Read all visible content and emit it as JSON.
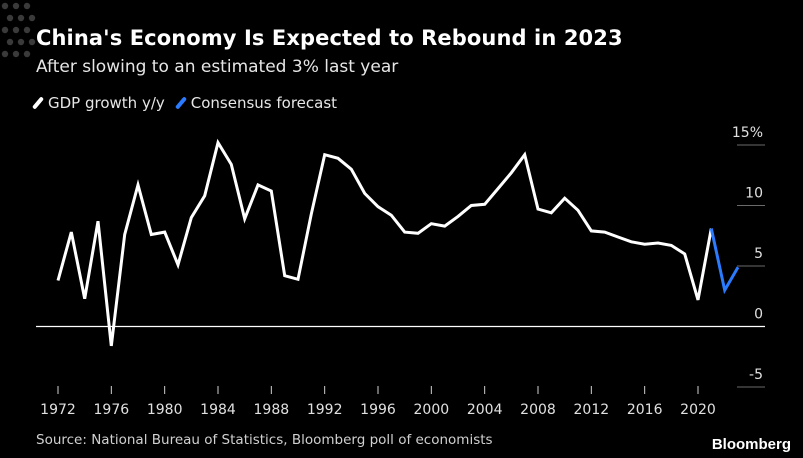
{
  "colors": {
    "background": "#000000",
    "gdp_line": "#ffffff",
    "forecast_line": "#2b7bff",
    "gridline": "#6a6a6a",
    "zero_line": "#ffffff"
  },
  "header": {
    "title": "China's Economy Is Expected to Rebound in 2023",
    "subtitle": "After slowing to an estimated 3% last year"
  },
  "footer": {
    "source": "Source: National Bureau of Statistics, Bloomberg poll of economists",
    "brand": "Bloomberg"
  },
  "chart_data": {
    "type": "line",
    "legend": [
      {
        "name": "GDP growth y/y",
        "color": "#ffffff"
      },
      {
        "name": "Consensus forecast",
        "color": "#2b7bff"
      }
    ],
    "legend_position": "top-left",
    "grid": true,
    "ylim": [
      -5,
      15
    ],
    "y_ticks": [
      {
        "value": 15,
        "label": "15%"
      },
      {
        "value": 10,
        "label": "10"
      },
      {
        "value": 5,
        "label": "5"
      },
      {
        "value": 0,
        "label": "0"
      },
      {
        "value": -5,
        "label": "-5"
      }
    ],
    "xlim": [
      1971,
      2024
    ],
    "x_ticks": [
      1972,
      1976,
      1980,
      1984,
      1988,
      1992,
      1996,
      2000,
      2004,
      2008,
      2012,
      2016,
      2020
    ],
    "series": [
      {
        "name": "GDP growth y/y",
        "color": "#ffffff",
        "x": [
          1972,
          1973,
          1974,
          1975,
          1976,
          1977,
          1978,
          1979,
          1980,
          1981,
          1982,
          1983,
          1984,
          1985,
          1986,
          1987,
          1988,
          1989,
          1990,
          1991,
          1992,
          1993,
          1994,
          1995,
          1996,
          1997,
          1998,
          1999,
          2000,
          2001,
          2002,
          2003,
          2004,
          2005,
          2006,
          2007,
          2008,
          2009,
          2010,
          2011,
          2012,
          2013,
          2014,
          2015,
          2016,
          2017,
          2018,
          2019,
          2020,
          2021
        ],
        "values": [
          3.8,
          7.8,
          2.3,
          8.7,
          -1.6,
          7.6,
          11.7,
          7.6,
          7.8,
          5.1,
          9.0,
          10.8,
          15.2,
          13.4,
          8.9,
          11.7,
          11.2,
          4.2,
          3.9,
          9.3,
          14.2,
          13.9,
          13.0,
          11.0,
          9.9,
          9.2,
          7.8,
          7.7,
          8.5,
          8.3,
          9.1,
          10.0,
          10.1,
          11.4,
          12.7,
          14.2,
          9.7,
          9.4,
          10.6,
          9.6,
          7.9,
          7.8,
          7.4,
          7.0,
          6.8,
          6.9,
          6.7,
          6.0,
          2.2,
          8.1
        ]
      },
      {
        "name": "Consensus forecast",
        "color": "#2b7bff",
        "x": [
          2021,
          2022,
          2023
        ],
        "values": [
          8.1,
          3.0,
          4.9
        ]
      }
    ]
  }
}
